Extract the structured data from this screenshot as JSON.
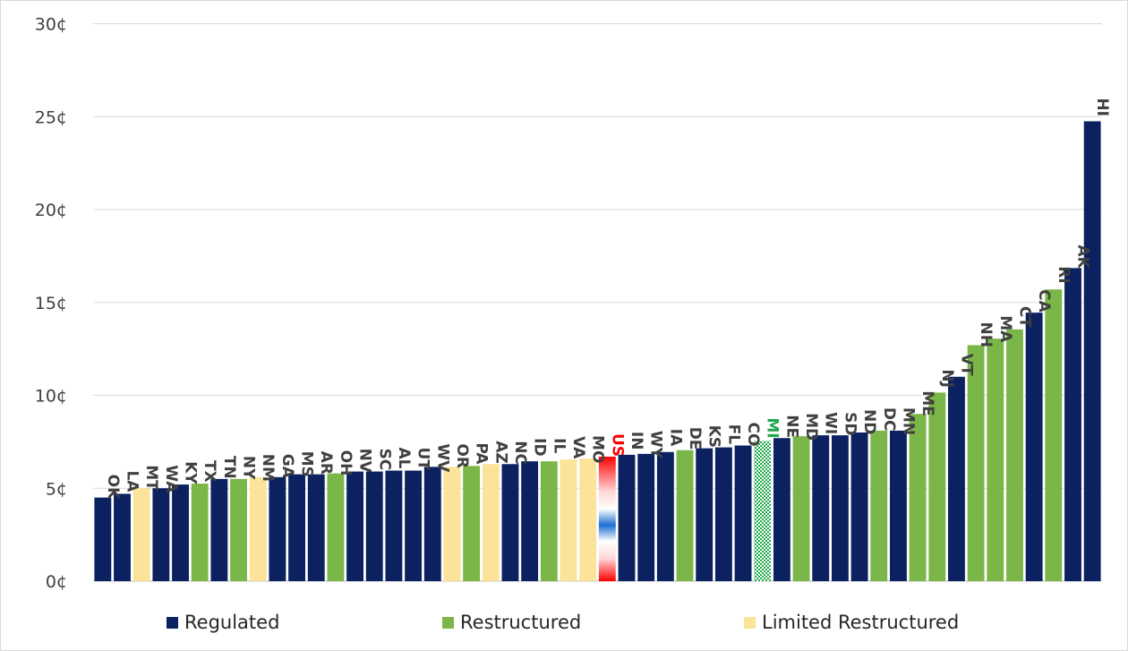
{
  "chart_data": {
    "type": "bar",
    "yticks": [
      "0¢",
      "5¢",
      "10¢",
      "15¢",
      "20¢",
      "25¢",
      "30¢"
    ],
    "ylim": [
      0,
      30
    ],
    "grid": true,
    "legend_position": "bottom",
    "colors": {
      "Regulated": "#0b2160",
      "Restructured": "#7ab648",
      "Limited Restructured": "#fbe39a"
    },
    "legend": [
      {
        "label": "Regulated",
        "color": "#0b2160"
      },
      {
        "label": "Restructured",
        "color": "#7ab648"
      },
      {
        "label": "Limited Restructured",
        "color": "#fbe39a"
      }
    ],
    "bars": [
      {
        "label": "OK",
        "value": 4.5,
        "type": "Regulated"
      },
      {
        "label": "LA",
        "value": 4.7,
        "type": "Regulated"
      },
      {
        "label": "MT",
        "value": 5.0,
        "type": "Limited Restructured"
      },
      {
        "label": "WA",
        "value": 5.0,
        "type": "Regulated"
      },
      {
        "label": "KY",
        "value": 5.2,
        "type": "Regulated"
      },
      {
        "label": "TX",
        "value": 5.25,
        "type": "Restructured"
      },
      {
        "label": "TN",
        "value": 5.5,
        "type": "Regulated"
      },
      {
        "label": "NY",
        "value": 5.5,
        "type": "Restructured"
      },
      {
        "label": "NM",
        "value": 5.6,
        "type": "Limited Restructured"
      },
      {
        "label": "GA",
        "value": 5.6,
        "type": "Regulated"
      },
      {
        "label": "MS",
        "value": 5.75,
        "type": "Regulated"
      },
      {
        "label": "AR",
        "value": 5.75,
        "type": "Regulated"
      },
      {
        "label": "OH",
        "value": 5.8,
        "type": "Restructured"
      },
      {
        "label": "NV",
        "value": 5.9,
        "type": "Regulated"
      },
      {
        "label": "SC",
        "value": 5.9,
        "type": "Regulated"
      },
      {
        "label": "AL",
        "value": 5.95,
        "type": "Regulated"
      },
      {
        "label": "UT",
        "value": 5.95,
        "type": "Regulated"
      },
      {
        "label": "WV",
        "value": 6.15,
        "type": "Regulated"
      },
      {
        "label": "OR",
        "value": 6.15,
        "type": "Limited Restructured"
      },
      {
        "label": "PA",
        "value": 6.2,
        "type": "Restructured"
      },
      {
        "label": "AZ",
        "value": 6.3,
        "type": "Limited Restructured"
      },
      {
        "label": "NC",
        "value": 6.3,
        "type": "Regulated"
      },
      {
        "label": "ID",
        "value": 6.45,
        "type": "Regulated"
      },
      {
        "label": "IL",
        "value": 6.45,
        "type": "Restructured"
      },
      {
        "label": "VA",
        "value": 6.55,
        "type": "Limited Restructured"
      },
      {
        "label": "MO",
        "value": 6.6,
        "type": "Limited Restructured"
      },
      {
        "label": "US",
        "value": 6.7,
        "type": "US"
      },
      {
        "label": "IN",
        "value": 6.8,
        "type": "Regulated"
      },
      {
        "label": "WY",
        "value": 6.85,
        "type": "Regulated"
      },
      {
        "label": "IA",
        "value": 6.95,
        "type": "Regulated"
      },
      {
        "label": "DE",
        "value": 7.05,
        "type": "Restructured"
      },
      {
        "label": "KS",
        "value": 7.15,
        "type": "Regulated"
      },
      {
        "label": "FL",
        "value": 7.2,
        "type": "Regulated"
      },
      {
        "label": "CO",
        "value": 7.3,
        "type": "Regulated"
      },
      {
        "label": "MI",
        "value": 7.55,
        "type": "MI"
      },
      {
        "label": "NE",
        "value": 7.7,
        "type": "Regulated"
      },
      {
        "label": "MD",
        "value": 7.8,
        "type": "Restructured"
      },
      {
        "label": "WI",
        "value": 7.85,
        "type": "Regulated"
      },
      {
        "label": "SD",
        "value": 7.85,
        "type": "Regulated"
      },
      {
        "label": "ND",
        "value": 8.0,
        "type": "Regulated"
      },
      {
        "label": "DC",
        "value": 8.1,
        "type": "Restructured"
      },
      {
        "label": "MN",
        "value": 8.1,
        "type": "Regulated"
      },
      {
        "label": "ME",
        "value": 9.0,
        "type": "Restructured"
      },
      {
        "label": "NJ",
        "value": 10.15,
        "type": "Restructured"
      },
      {
        "label": "VT",
        "value": 11.0,
        "type": "Regulated"
      },
      {
        "label": "NH",
        "value": 12.7,
        "type": "Restructured"
      },
      {
        "label": "MA",
        "value": 13.05,
        "type": "Restructured"
      },
      {
        "label": "CT",
        "value": 13.55,
        "type": "Restructured"
      },
      {
        "label": "CA",
        "value": 14.45,
        "type": "Regulated"
      },
      {
        "label": "RI",
        "value": 15.7,
        "type": "Restructured"
      },
      {
        "label": "AK",
        "value": 16.85,
        "type": "Regulated"
      },
      {
        "label": "HI",
        "value": 24.75,
        "type": "Regulated"
      }
    ]
  }
}
